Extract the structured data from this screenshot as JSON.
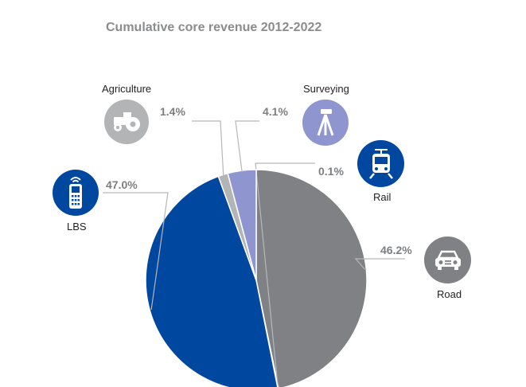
{
  "colors": {
    "road": "#808184",
    "lbs": "#0047a0",
    "agriculture": "#b3b4b6",
    "surveying": "#8e95cf",
    "rail": "#0047a0",
    "leader": "#b6b7b9"
  },
  "chart_data": {
    "type": "pie",
    "title": "Cumulative core revenue 2012-2022",
    "slices": [
      {
        "name": "Road",
        "value": 46.2,
        "label": "46.2%",
        "color": "#808184",
        "icon": "car-icon"
      },
      {
        "name": "Rail",
        "value": 0.1,
        "label": "0.1%",
        "color": "#0047a0",
        "icon": "train-icon"
      },
      {
        "name": "LBS",
        "value": 47.0,
        "label": "47.0%",
        "color": "#0047a0",
        "icon": "mobile-phone-icon"
      },
      {
        "name": "Agriculture",
        "value": 1.4,
        "label": "1.4%",
        "color": "#b3b4b6",
        "icon": "tractor-icon"
      },
      {
        "name": "Surveying",
        "value": 4.1,
        "label": "4.1%",
        "color": "#8e95cf",
        "icon": "surveyor-tripod-icon"
      }
    ],
    "legend": "none",
    "grid": false
  }
}
